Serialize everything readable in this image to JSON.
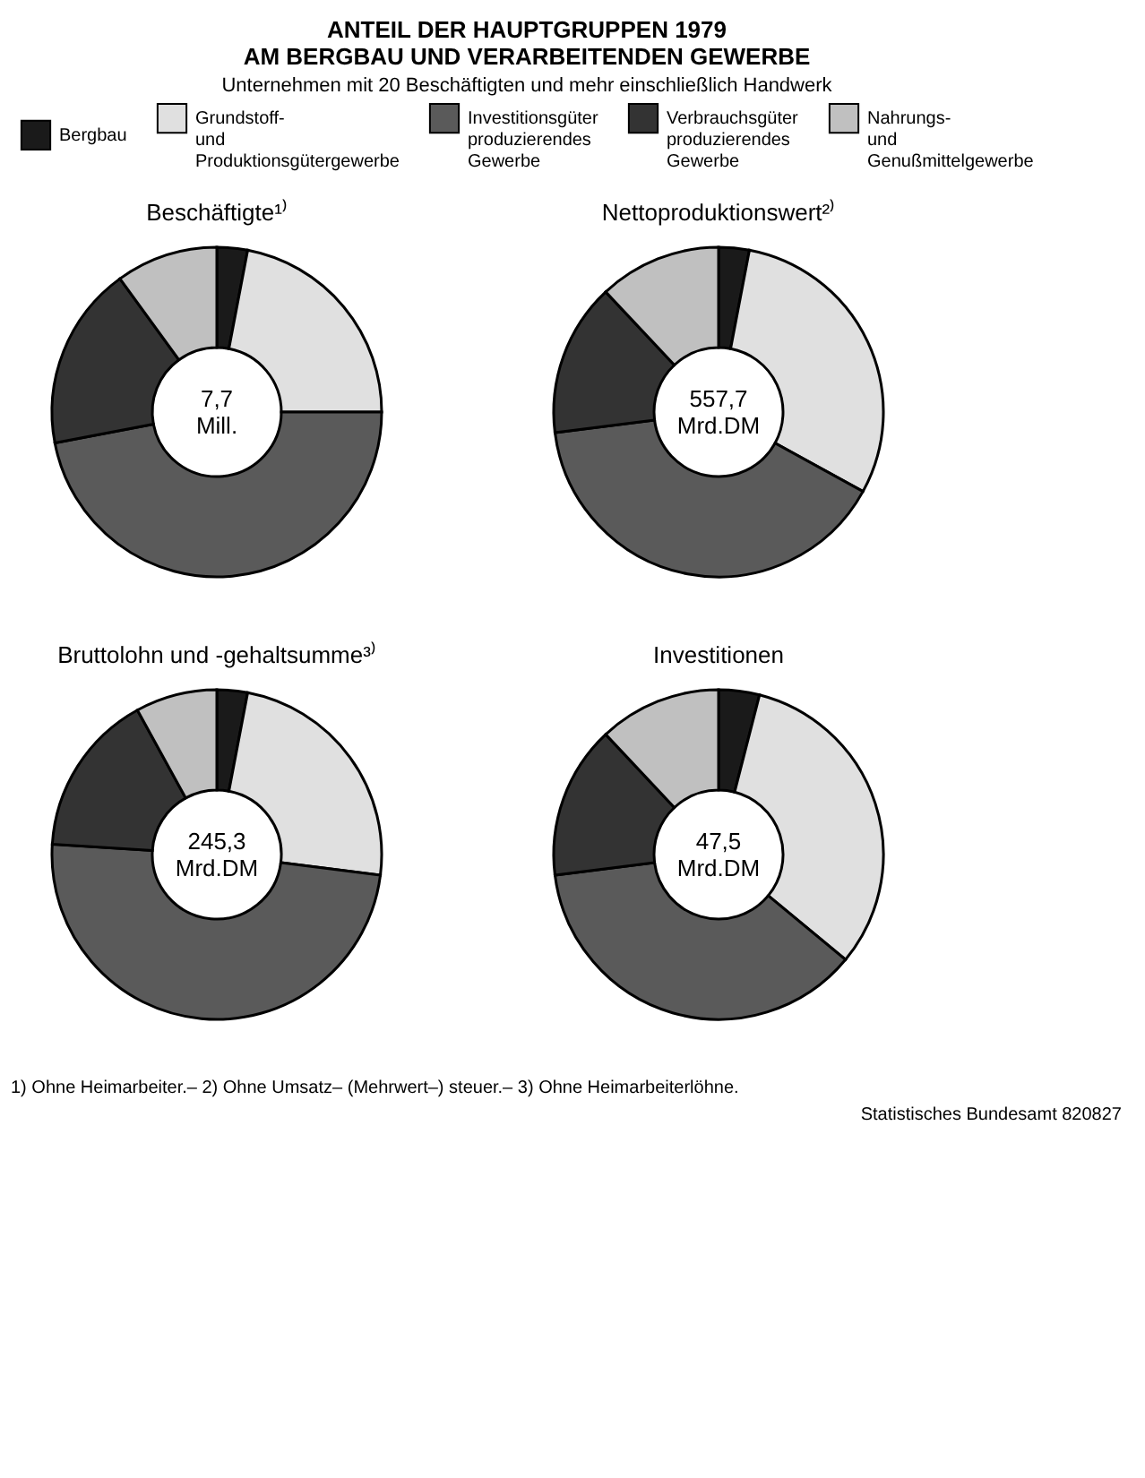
{
  "chart_data": [
    {
      "type": "donut",
      "title": "Beschäftigte¹⁾",
      "categories": [
        "Bergbau",
        "Grundstoff- und Produktionsgütergewerbe",
        "Investitionsgüter produzierendes Gewerbe",
        "Verbrauchsgüter produzierendes Gewerbe",
        "Nahrungs- und Genußmittelgewerbe"
      ],
      "values": [
        3,
        22,
        47,
        18,
        10
      ],
      "colors": [
        "#1a1a1a",
        "#e0e0e0",
        "#5a5a5a",
        "#333333",
        "#c0c0c0"
      ],
      "legend": "top",
      "annotations": [
        "7,7 Mill.",
        "ANTEIL DER HAUPTGRUPPEN 1979",
        "AM BERGBAU UND VERARBEITENDEN GEWERBE",
        "Unternehmen mit 20 Beschäftigten und mehr einschließlich Handwerk"
      ]
    },
    {
      "type": "donut",
      "title": "Nettoproduktionswert²⁾",
      "values": [
        3,
        30,
        40,
        15,
        12
      ],
      "colors": [
        "#1a1a1a",
        "#e0e0e0",
        "#5a5a5a",
        "#333333",
        "#c0c0c0"
      ],
      "annotations": [
        "557,7 Mrd.DM"
      ]
    },
    {
      "type": "donut",
      "title": "Bruttolohn und -gehaltsumme³⁾",
      "values": [
        3,
        24,
        49,
        16,
        8
      ],
      "colors": [
        "#1a1a1a",
        "#e0e0e0",
        "#5a5a5a",
        "#333333",
        "#c0c0c0"
      ],
      "annotations": [
        "245,3 Mrd.DM"
      ]
    },
    {
      "type": "donut",
      "title": "Investitionen",
      "values": [
        4,
        32,
        37,
        15,
        12
      ],
      "colors": [
        "#1a1a1a",
        "#e0e0e0",
        "#5a5a5a",
        "#333333",
        "#c0c0c0"
      ],
      "annotations": [
        "47,5 Mrd.DM",
        "1) Ohne Heimarbeiter.– 2) Ohne Umsatz– (Mehrwert–) steuer.– 3) Ohne Heimarbeiterlöhne.",
        "Statistisches Bundesamt 820827"
      ]
    }
  ]
}
